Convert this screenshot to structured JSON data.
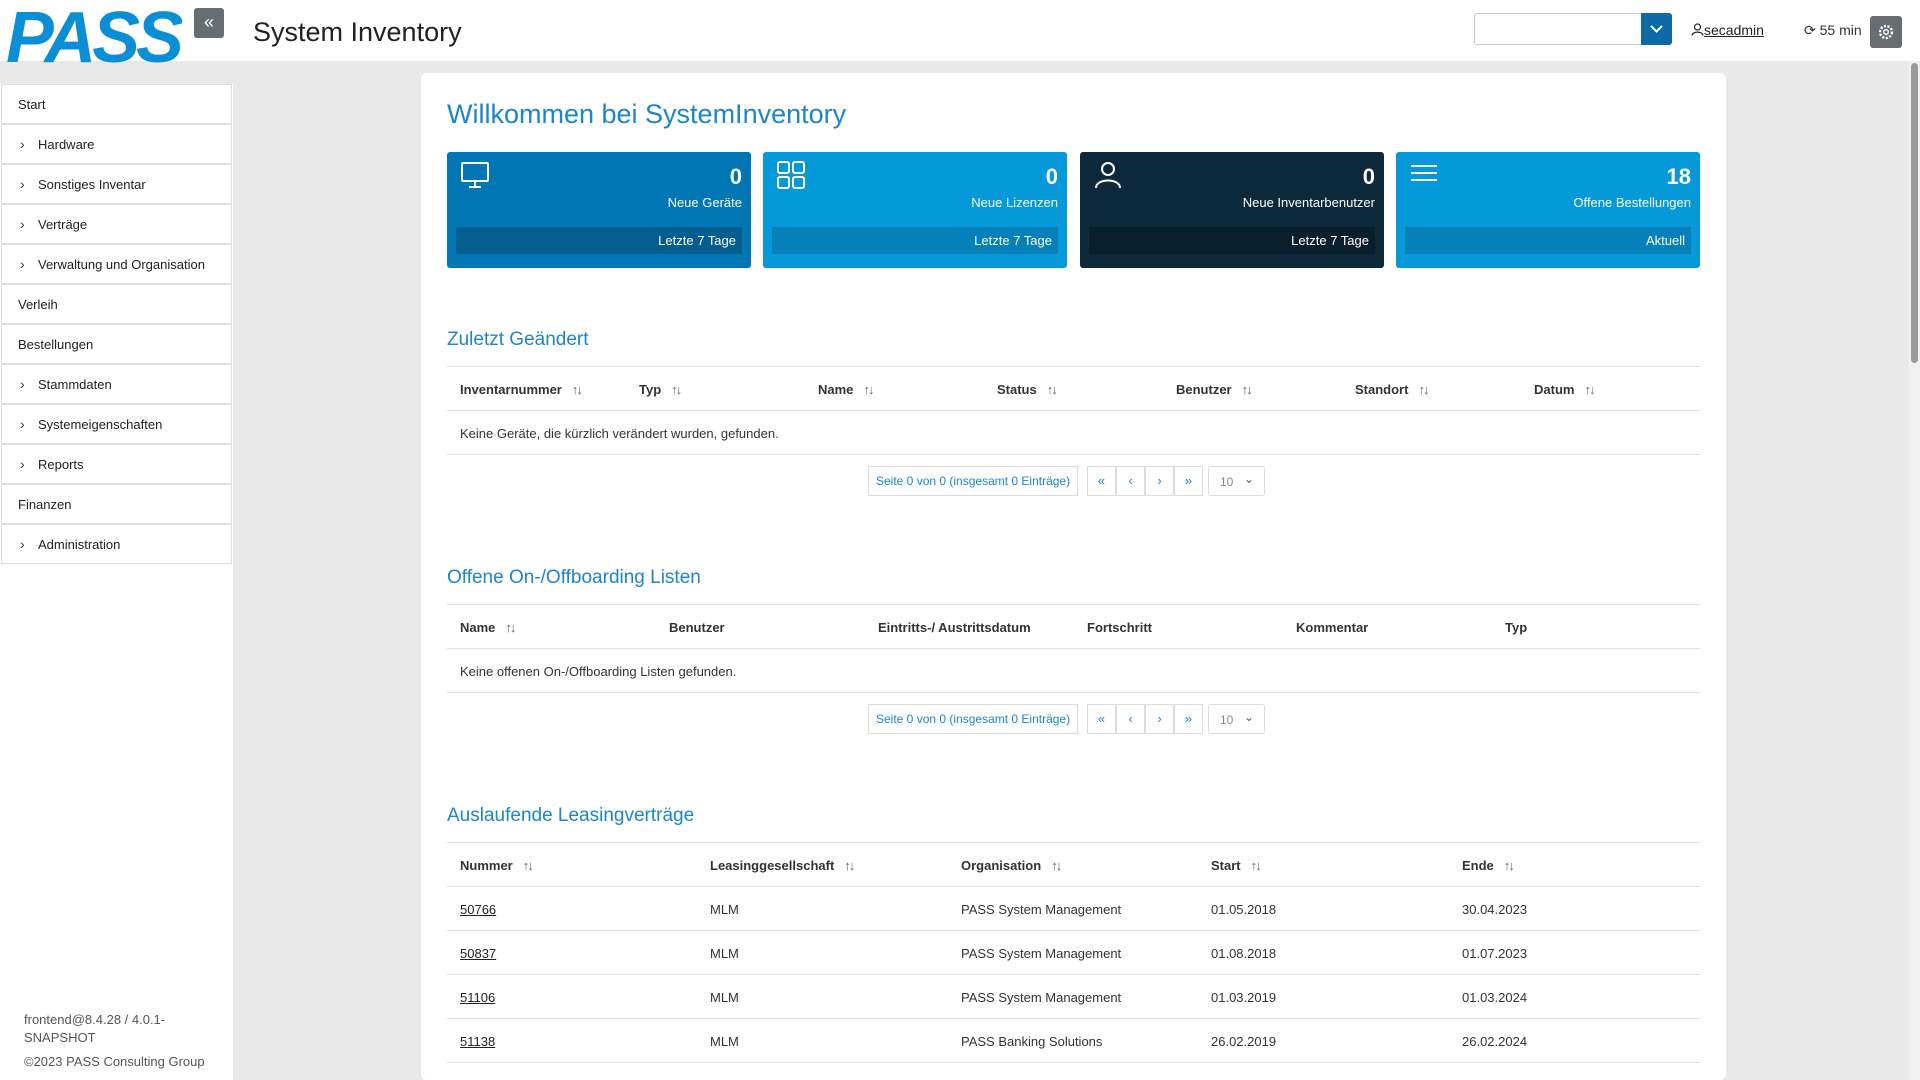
{
  "header": {
    "logo_text": "PASS",
    "title": "System Inventory",
    "select_value": "",
    "user": "secadmin",
    "timer": "55 min"
  },
  "sidebar": {
    "items": [
      {
        "label": "Start",
        "expandable": false
      },
      {
        "label": "Hardware",
        "expandable": true
      },
      {
        "label": "Sonstiges Inventar",
        "expandable": true
      },
      {
        "label": "Verträge",
        "expandable": true
      },
      {
        "label": "Verwaltung und Organisation",
        "expandable": true
      },
      {
        "label": "Verleih",
        "expandable": false
      },
      {
        "label": "Bestellungen",
        "expandable": false
      },
      {
        "label": "Stammdaten",
        "expandable": true
      },
      {
        "label": "Systemeigenschaften",
        "expandable": true
      },
      {
        "label": "Reports",
        "expandable": true
      },
      {
        "label": "Finanzen",
        "expandable": false
      },
      {
        "label": "Administration",
        "expandable": true
      }
    ],
    "version": "frontend@8.4.28 / 4.0.1-SNAPSHOT",
    "copyright": "©2023 PASS Consulting Group"
  },
  "main": {
    "welcome": "Willkommen bei SystemInventory",
    "stats": [
      {
        "value": "0",
        "caption": "Neue Geräte",
        "footer": "Letzte 7 Tage",
        "icon": "monitor-icon",
        "color": "#0076b4"
      },
      {
        "value": "0",
        "caption": "Neue Lizenzen",
        "footer": "Letzte 7 Tage",
        "icon": "grid-icon",
        "color": "#0599d9"
      },
      {
        "value": "0",
        "caption": "Neue Inventarbenutzer",
        "footer": "Letzte 7 Tage",
        "icon": "user-icon",
        "color": "#0d2a3c"
      },
      {
        "value": "18",
        "caption": "Offene Bestellungen",
        "footer": "Aktuell",
        "icon": "list-icon",
        "color": "#0599d9"
      }
    ],
    "recent": {
      "title": "Zuletzt Geändert",
      "columns": [
        "Inventarnummer",
        "Typ",
        "Name",
        "Status",
        "Benutzer",
        "Standort",
        "Datum"
      ],
      "empty": "Keine Geräte, die kürzlich verändert wurden, gefunden.",
      "pager_info": "Seite 0 von 0 (insgesamt 0 Einträge)",
      "page_size": "10"
    },
    "onboarding": {
      "title": "Offene On-/Offboarding Listen",
      "columns": [
        "Name",
        "Benutzer",
        "Eintritts-/ Austrittsdatum",
        "Fortschritt",
        "Kommentar",
        "Typ"
      ],
      "empty": "Keine offenen On-/Offboarding Listen gefunden.",
      "pager_info": "Seite 0 von 0 (insgesamt 0 Einträge)",
      "page_size": "10"
    },
    "leasing": {
      "title": "Auslaufende Leasingverträge",
      "columns": [
        "Nummer",
        "Leasinggesellschaft",
        "Organisation",
        "Start",
        "Ende"
      ],
      "rows": [
        [
          "50766",
          "MLM",
          "PASS System Management",
          "01.05.2018",
          "30.04.2023"
        ],
        [
          "50837",
          "MLM",
          "PASS System Management",
          "01.08.2018",
          "01.07.2023"
        ],
        [
          "51106",
          "MLM",
          "PASS System Management",
          "01.03.2019",
          "01.03.2024"
        ],
        [
          "51138",
          "MLM",
          "PASS Banking Solutions",
          "26.02.2019",
          "26.02.2024"
        ]
      ]
    }
  },
  "colors": {
    "accent": "#1b86c8",
    "button_gray": "#666d73",
    "logo_blue": "#0a8fd6"
  }
}
